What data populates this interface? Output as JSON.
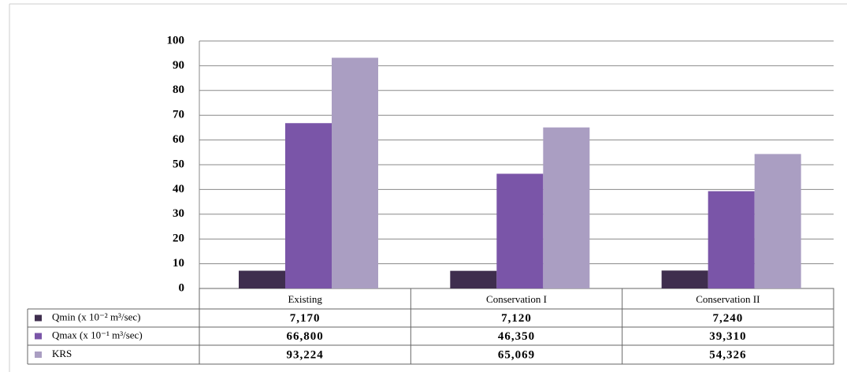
{
  "chart_data": {
    "type": "bar",
    "categories": [
      "Existing",
      "Conservation I",
      "Conservation II"
    ],
    "series": [
      {
        "name": "Qmin (x 10⁻² m³/sec)",
        "color": "#3f2e4e",
        "values": [
          7.17,
          7.12,
          7.24
        ],
        "value_labels": [
          "7,170",
          "7,120",
          "7,240"
        ]
      },
      {
        "name": "Qmax (x 10⁻¹ m³/sec)",
        "color": "#7a55a8",
        "values": [
          66.8,
          46.35,
          39.31
        ],
        "value_labels": [
          "66,800",
          "46,350",
          "39,310"
        ]
      },
      {
        "name": "KRS",
        "color": "#aa9ec2",
        "values": [
          93.224,
          65.069,
          54.326
        ],
        "value_labels": [
          "93,224",
          "65,069",
          "54,326"
        ]
      }
    ],
    "ylim": [
      0,
      100
    ],
    "yticks": [
      0,
      10,
      20,
      30,
      40,
      50,
      60,
      70,
      80,
      90,
      100
    ],
    "grid": true
  }
}
